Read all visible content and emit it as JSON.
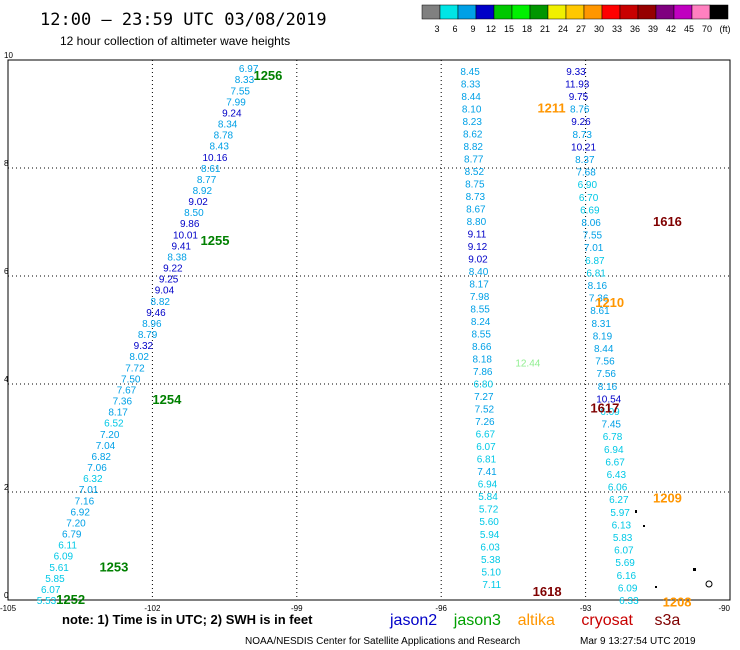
{
  "title": "12:00 – 23:59 UTC 03/08/2019",
  "subtitle": "12 hour collection of altimeter wave heights",
  "colorbar": {
    "colors": [
      "#808080",
      "#00e5e5",
      "#00a0e6",
      "#0000c8",
      "#00c800",
      "#00f000",
      "#009600",
      "#f0f000",
      "#ffc800",
      "#ff9600",
      "#ff0000",
      "#c80000",
      "#960000",
      "#7f007f",
      "#c000c0",
      "#ff80c0",
      "#000000"
    ],
    "labels": [
      "3",
      "6",
      "9",
      "12",
      "15",
      "18",
      "21",
      "24",
      "27",
      "30",
      "33",
      "36",
      "39",
      "42",
      "45",
      "70",
      "(ft)"
    ]
  },
  "chart_data": {
    "type": "scatter",
    "xlim": [
      -105,
      -90
    ],
    "ylim": [
      0,
      10
    ],
    "x_ticks": [
      "-105",
      "-102",
      "-99",
      "-96",
      "-93",
      "-90"
    ],
    "y_ticks": [
      "0",
      "2",
      "4",
      "6",
      "8",
      "10"
    ],
    "series": [
      {
        "name": "jason2",
        "color": "#0000c8"
      },
      {
        "name": "jason3",
        "color": "#00a000"
      },
      {
        "name": "altika",
        "color": "#ff9600"
      },
      {
        "name": "cryosat",
        "color": "#c80000"
      },
      {
        "name": "s3a",
        "color": "#7f0000"
      }
    ],
    "tracks": [
      {
        "x_start": -104.2,
        "y_start": 0.0,
        "x_end": -100.0,
        "y_end": 9.85,
        "values": [
          "5.53",
          "6.07",
          "5.85",
          "5.61",
          "6.09",
          "6.11",
          "6.79",
          "7.20",
          "6.92",
          "7.16",
          "7.01",
          "6.32",
          "7.06",
          "6.82",
          "7.04",
          "7.20",
          "6.52",
          "8.17",
          "7.36",
          "7.67",
          "7.50",
          "7.72",
          "8.02",
          "9.32",
          "8.79",
          "8.96",
          "9.46",
          "8.82",
          "9.04",
          "9.25",
          "9.22",
          "8.38",
          "9.41",
          "10.01",
          "9.86",
          "8.50",
          "9.02",
          "8.92",
          "8.77",
          "8.61",
          "10.16",
          "8.43",
          "8.78",
          "8.34",
          "9.24",
          "7.99",
          "7.55",
          "8.33",
          "6.97"
        ],
        "colors": [
          "#00c8e6",
          "#00c8e6",
          "#00c8e6",
          "#00c8e6",
          "#00c8e6",
          "#00c8e6",
          "#00a0e6",
          "#00a0e6",
          "#00a0e6",
          "#00a0e6",
          "#00a0e6",
          "#00c8e6",
          "#00a0e6",
          "#00a0e6",
          "#00a0e6",
          "#00a0e6",
          "#00c8e6",
          "#00a0e6",
          "#00a0e6",
          "#00a0e6",
          "#00a0e6",
          "#00a0e6",
          "#00a0e6",
          "#0000c8",
          "#00a0e6",
          "#00a0e6",
          "#0000c8",
          "#00a0e6",
          "#0000c8",
          "#0000c8",
          "#0000c8",
          "#00a0e6",
          "#0000c8",
          "#0000c8",
          "#0000c8",
          "#00a0e6",
          "#0000c8",
          "#00a0e6",
          "#00a0e6",
          "#00a0e6",
          "#0000c8",
          "#00a0e6",
          "#00a0e6",
          "#00a0e6",
          "#0000c8",
          "#00a0e6",
          "#00a0e6",
          "#00a0e6",
          "#00a0e6"
        ]
      },
      {
        "x_start": -94.95,
        "y_start": 0.3,
        "x_end": -95.4,
        "y_end": 9.8,
        "values": [
          "7.11",
          "5.10",
          "5.38",
          "6.03",
          "5.94",
          "5.60",
          "5.72",
          "5.84",
          "6.94",
          "7.41",
          "6.81",
          "6.07",
          "6.67",
          "7.26",
          "7.52",
          "7.27",
          "6.80",
          "7.86",
          "8.18",
          "8.66",
          "8.55",
          "8.24",
          "8.55",
          "7.98",
          "8.17",
          "8.40",
          "9.02",
          "9.12",
          "9.11",
          "8.80",
          "8.67",
          "8.73",
          "8.75",
          "8.52",
          "8.77",
          "8.82",
          "8.62",
          "8.23",
          "8.10",
          "8.44",
          "8.33",
          "8.45"
        ],
        "colors": [
          "#00c8e6",
          "#00c8e6",
          "#00c8e6",
          "#00c8e6",
          "#00c8e6",
          "#00c8e6",
          "#00c8e6",
          "#00c8e6",
          "#00c8e6",
          "#00a0e6",
          "#00c8e6",
          "#00c8e6",
          "#00c8e6",
          "#00a0e6",
          "#00a0e6",
          "#00a0e6",
          "#00c8e6",
          "#00a0e6",
          "#00a0e6",
          "#00a0e6",
          "#00a0e6",
          "#00a0e6",
          "#00a0e6",
          "#00a0e6",
          "#00a0e6",
          "#00a0e6",
          "#0000c8",
          "#0000c8",
          "#0000c8",
          "#00a0e6",
          "#00a0e6",
          "#00a0e6",
          "#00a0e6",
          "#00a0e6",
          "#00a0e6",
          "#00a0e6",
          "#00a0e6",
          "#00a0e6",
          "#00a0e6",
          "#00a0e6",
          "#00a0e6",
          "#00a0e6"
        ]
      },
      {
        "x_start": -92.1,
        "y_start": 0.0,
        "x_end": -93.2,
        "y_end": 9.8,
        "values": [
          "6.33",
          "6.09",
          "6.16",
          "5.69",
          "6.07",
          "5.83",
          "6.13",
          "5.97",
          "6.27",
          "6.06",
          "6.43",
          "6.67",
          "6.94",
          "6.78",
          "7.45",
          "6.09",
          "10.54",
          "8.16",
          "7.56",
          "7.56",
          "8.44",
          "8.19",
          "8.31",
          "8.61",
          "7.36",
          "8.16",
          "6.81",
          "6.87",
          "7.01",
          "7.55",
          "8.06",
          "6.69",
          "6.70",
          "6.90",
          "7.68",
          "8.37",
          "10.21",
          "8.73",
          "9.26",
          "8.76",
          "9.75",
          "11.93",
          "9.33"
        ],
        "colors": [
          "#00c8e6",
          "#00c8e6",
          "#00c8e6",
          "#00c8e6",
          "#00c8e6",
          "#00c8e6",
          "#00c8e6",
          "#00c8e6",
          "#00c8e6",
          "#00c8e6",
          "#00c8e6",
          "#00c8e6",
          "#00c8e6",
          "#00c8e6",
          "#00a0e6",
          "#00c8e6",
          "#0000c8",
          "#00a0e6",
          "#00a0e6",
          "#00a0e6",
          "#00a0e6",
          "#00a0e6",
          "#00a0e6",
          "#00a0e6",
          "#00a0e6",
          "#00a0e6",
          "#00c8e6",
          "#00c8e6",
          "#00a0e6",
          "#00a0e6",
          "#00a0e6",
          "#00c8e6",
          "#00c8e6",
          "#00c8e6",
          "#00a0e6",
          "#00a0e6",
          "#0000c8",
          "#00a0e6",
          "#0000c8",
          "#00a0e6",
          "#0000c8",
          "#0000c8",
          "#0000c8"
        ]
      }
    ],
    "time_labels": [
      {
        "text": "1252",
        "x": -104.0,
        "y": 0.0,
        "color": "#008000"
      },
      {
        "text": "1253",
        "x": -103.1,
        "y": 0.6,
        "color": "#008000"
      },
      {
        "text": "1254",
        "x": -102.0,
        "y": 3.7,
        "color": "#008000"
      },
      {
        "text": "1255",
        "x": -101.0,
        "y": 6.65,
        "color": "#008000"
      },
      {
        "text": "1256",
        "x": -99.9,
        "y": 9.7,
        "color": "#008000"
      },
      {
        "text": "1211",
        "x": -94.0,
        "y": 9.1,
        "color": "#ff9600"
      },
      {
        "text": "1210",
        "x": -92.8,
        "y": 5.5,
        "color": "#ff9600"
      },
      {
        "text": "1209",
        "x": -91.6,
        "y": 1.88,
        "color": "#ff9600"
      },
      {
        "text": "1208",
        "x": -91.4,
        "y": -0.05,
        "color": "#ff9600"
      },
      {
        "text": "1616",
        "x": -91.6,
        "y": 7.0,
        "color": "#7f0000"
      },
      {
        "text": "1617",
        "x": -92.9,
        "y": 3.55,
        "color": "#7f0000"
      },
      {
        "text": "1618",
        "x": -94.1,
        "y": 0.15,
        "color": "#7f0000"
      }
    ],
    "extra_points": [
      {
        "text": "12.44",
        "x": -94.2,
        "y": 4.4,
        "color": "#90ee90"
      }
    ]
  },
  "note": "note: 1) Time is in UTC; 2) SWH is in feet",
  "legend": [
    {
      "label": "jason2",
      "color": "#0000c8"
    },
    {
      "label": "jason3",
      "color": "#00a000"
    },
    {
      "label": "altika",
      "color": "#ff9600"
    },
    {
      "label": "cryosat",
      "color": "#c80000"
    },
    {
      "label": "s3a",
      "color": "#7f0000"
    }
  ],
  "footer": "NOAA/NESDIS Center for Satellite Applications and Research",
  "timestamp": "Mar  9 13:27:54 UTC 2019"
}
